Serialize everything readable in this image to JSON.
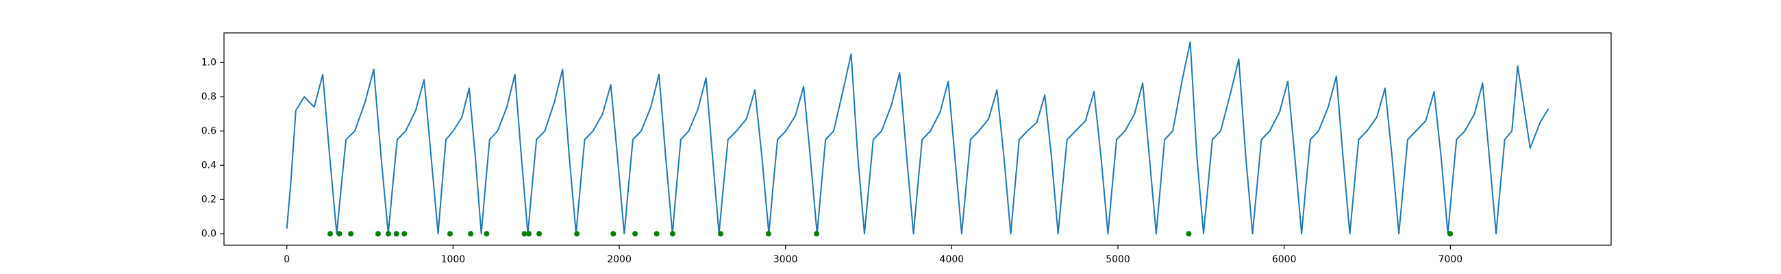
{
  "chart_data": {
    "type": "line",
    "xlim": [
      -378,
      7967
    ],
    "ylim": [
      -0.067,
      1.173
    ],
    "xticks": [
      0,
      1000,
      2000,
      3000,
      4000,
      5000,
      6000,
      7000
    ],
    "yticks": [
      {
        "value": 0,
        "label": "0.0"
      },
      0.2,
      0.4,
      0.6,
      0.8,
      {
        "value": 1,
        "label": "1.0"
      }
    ],
    "series": [
      {
        "type": "line",
        "color": "#1f77b4",
        "x": [
          0,
          24,
          54,
          105,
          165,
          216,
          258,
          300,
          325,
          356,
          409,
          471,
          523,
          567,
          610,
          634,
          664,
          715,
          775,
          826,
          868,
          910,
          931,
          957,
          1001,
          1053,
          1097,
          1134,
          1170,
          1192,
          1220,
          1268,
          1324,
          1372,
          1411,
          1450,
          1473,
          1502,
          1552,
          1610,
          1659,
          1699,
          1740,
          1763,
          1792,
          1842,
          1900,
          1949,
          1989,
          2030,
          2053,
          2082,
          2132,
          2190,
          2239,
          2279,
          2320,
          2342,
          2370,
          2418,
          2474,
          2522,
          2561,
          2600,
          2624,
          2654,
          2705,
          2765,
          2816,
          2858,
          2900,
          2923,
          2952,
          3002,
          3060,
          3109,
          3149,
          3190,
          3213,
          3241,
          3290,
          3347,
          3395,
          3435,
          3475,
          3499,
          3528,
          3578,
          3637,
          3687,
          3729,
          3770,
          3793,
          3822,
          3872,
          3930,
          3979,
          4019,
          4060,
          4084,
          4113,
          4163,
          4222,
          4272,
          4314,
          4355,
          4378,
          4406,
          4455,
          4512,
          4560,
          4600,
          4640,
          4664,
          4694,
          4745,
          4805,
          4856,
          4898,
          4940,
          4963,
          4992,
          5042,
          5100,
          5149,
          5189,
          5230,
          5253,
          5281,
          5330,
          5387,
          5435,
          5475,
          5515,
          5539,
          5568,
          5618,
          5677,
          5727,
          5769,
          5810,
          5834,
          5863,
          5913,
          5972,
          6022,
          6064,
          6105,
          6128,
          6157,
          6207,
          6265,
          6314,
          6354,
          6395,
          6419,
          6448,
          6498,
          6557,
          6607,
          6649,
          6690,
          6714,
          6743,
          6793,
          6852,
          6902,
          6944,
          6985,
          7008,
          7037,
          7087,
          7145,
          7194,
          7234,
          7275,
          7298,
          7327,
          7370,
          7405,
          7480,
          7540,
          7590
        ],
        "values": [
          0.03,
          0.3,
          0.72,
          0.8,
          0.74,
          0.93,
          0.45,
          0,
          0.25,
          0.55,
          0.6,
          0.77,
          0.96,
          0.45,
          0,
          0.25,
          0.55,
          0.6,
          0.72,
          0.9,
          0.45,
          0,
          0.25,
          0.55,
          0.6,
          0.68,
          0.85,
          0.45,
          0,
          0.25,
          0.55,
          0.6,
          0.74,
          0.93,
          0.45,
          0,
          0.25,
          0.55,
          0.6,
          0.77,
          0.96,
          0.45,
          0,
          0.25,
          0.55,
          0.6,
          0.7,
          0.87,
          0.45,
          0,
          0.25,
          0.55,
          0.6,
          0.74,
          0.93,
          0.45,
          0,
          0.25,
          0.55,
          0.6,
          0.73,
          0.91,
          0.45,
          0,
          0.25,
          0.55,
          0.6,
          0.67,
          0.84,
          0.45,
          0,
          0.25,
          0.55,
          0.6,
          0.69,
          0.86,
          0.45,
          0,
          0.25,
          0.55,
          0.6,
          0.84,
          1.05,
          0.45,
          0,
          0.25,
          0.55,
          0.6,
          0.75,
          0.94,
          0.45,
          0,
          0.25,
          0.55,
          0.6,
          0.71,
          0.89,
          0.45,
          0,
          0.25,
          0.55,
          0.6,
          0.67,
          0.84,
          0.45,
          0,
          0.25,
          0.55,
          0.6,
          0.65,
          0.81,
          0.45,
          0,
          0.25,
          0.55,
          0.6,
          0.66,
          0.83,
          0.45,
          0,
          0.25,
          0.55,
          0.6,
          0.7,
          0.88,
          0.45,
          0,
          0.25,
          0.55,
          0.6,
          0.9,
          1.12,
          0.45,
          0,
          0.25,
          0.55,
          0.6,
          0.82,
          1.02,
          0.45,
          0,
          0.25,
          0.55,
          0.6,
          0.71,
          0.89,
          0.45,
          0,
          0.25,
          0.55,
          0.6,
          0.74,
          0.92,
          0.45,
          0,
          0.25,
          0.55,
          0.6,
          0.68,
          0.85,
          0.45,
          0,
          0.25,
          0.55,
          0.6,
          0.66,
          0.83,
          0.45,
          0,
          0.25,
          0.55,
          0.6,
          0.7,
          0.88,
          0.45,
          0,
          0.25,
          0.55,
          0.6,
          0.98,
          0.5,
          0.65,
          0.73
        ]
      },
      {
        "type": "scatter",
        "color": "#008000",
        "x": [
          261,
          316,
          385,
          549,
          611,
          659,
          707,
          982,
          1106,
          1202,
          1429,
          1456,
          1518,
          1745,
          1964,
          2095,
          2225,
          2321,
          2610,
          2898,
          3187,
          5426,
          6999
        ],
        "values": [
          0,
          0,
          0,
          0,
          0,
          0,
          0,
          0,
          0,
          0,
          0,
          0,
          0,
          0,
          0,
          0,
          0,
          0,
          0,
          0,
          0,
          0,
          0
        ]
      }
    ]
  }
}
